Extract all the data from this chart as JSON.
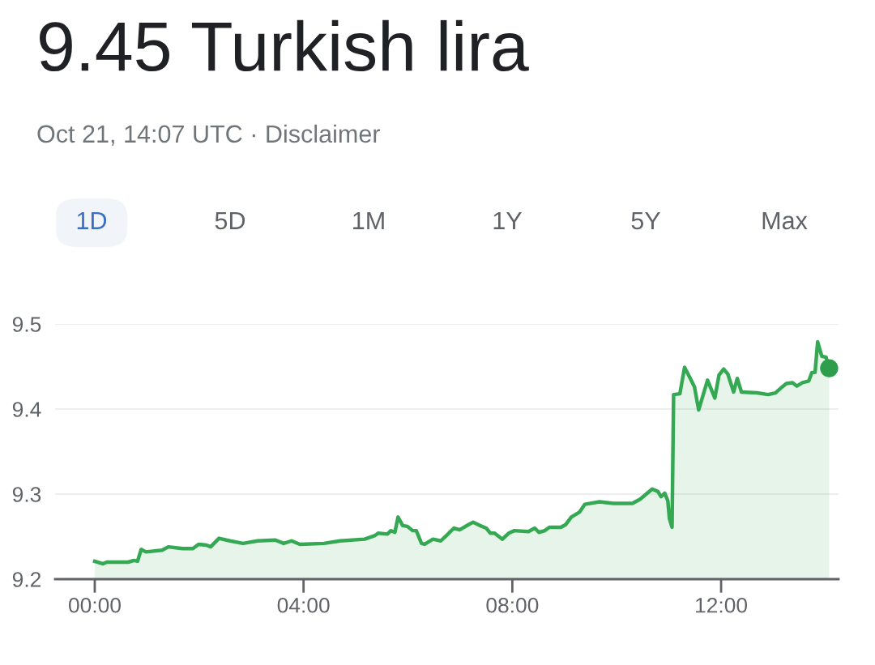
{
  "chart_data": {
    "type": "area",
    "title": "9.45 Turkish lira",
    "subtitle": "Oct 21, 14:07 UTC · Disclaimer",
    "annotations": [
      "1D",
      "5D",
      "1M",
      "1Y",
      "5Y",
      "Max"
    ],
    "xlim": [
      -0.76,
      14.25
    ],
    "ylim": [
      9.2,
      9.5
    ],
    "xticks": [
      {
        "value": 0,
        "label": "00:00"
      },
      {
        "value": 4,
        "label": "04:00"
      },
      {
        "value": 8,
        "label": "08:00"
      },
      {
        "value": 12,
        "label": "12:00"
      }
    ],
    "yticks": [
      9.2,
      9.3,
      9.4,
      9.5
    ],
    "grid": "y",
    "legend": false,
    "series": [
      {
        "color": "#34a853",
        "x": [
          0.0,
          0.16,
          0.23,
          0.64,
          0.75,
          0.82,
          0.89,
          0.98,
          1.29,
          1.41,
          1.68,
          1.88,
          1.99,
          2.14,
          2.22,
          2.38,
          2.59,
          2.84,
          3.12,
          3.46,
          3.62,
          3.77,
          3.93,
          4.39,
          4.7,
          5.17,
          5.36,
          5.43,
          5.61,
          5.67,
          5.75,
          5.81,
          5.9,
          5.99,
          6.09,
          6.16,
          6.26,
          6.32,
          6.48,
          6.63,
          6.75,
          6.88,
          6.99,
          7.16,
          7.25,
          7.38,
          7.5,
          7.58,
          7.66,
          7.81,
          7.93,
          8.04,
          8.31,
          8.43,
          8.51,
          8.62,
          8.71,
          8.93,
          9.02,
          9.13,
          9.29,
          9.39,
          9.67,
          9.8,
          9.94,
          10.3,
          10.45,
          10.68,
          10.79,
          10.85,
          10.92,
          10.98,
          11.01,
          11.06,
          11.09,
          11.21,
          11.3,
          11.41,
          11.49,
          11.57,
          11.74,
          11.88,
          11.96,
          12.05,
          12.13,
          12.24,
          12.31,
          12.39,
          12.69,
          12.9,
          13.04,
          13.17,
          13.25,
          13.37,
          13.45,
          13.56,
          13.68,
          13.74,
          13.8,
          13.85,
          13.93,
          14.01,
          14.07
        ],
        "values": [
          9.221,
          9.218,
          9.22,
          9.22,
          9.222,
          9.221,
          9.235,
          9.232,
          9.234,
          9.238,
          9.236,
          9.236,
          9.241,
          9.24,
          9.238,
          9.248,
          9.245,
          9.242,
          9.245,
          9.246,
          9.242,
          9.245,
          9.241,
          9.242,
          9.245,
          9.247,
          9.251,
          9.254,
          9.253,
          9.257,
          9.255,
          9.273,
          9.263,
          9.262,
          9.257,
          9.257,
          9.242,
          9.241,
          9.247,
          9.245,
          9.252,
          9.26,
          9.258,
          9.264,
          9.267,
          9.263,
          9.26,
          9.254,
          9.254,
          9.247,
          9.254,
          9.257,
          9.256,
          9.26,
          9.255,
          9.257,
          9.261,
          9.261,
          9.264,
          9.273,
          9.279,
          9.288,
          9.291,
          9.29,
          9.289,
          9.289,
          9.294,
          9.306,
          9.303,
          9.297,
          9.301,
          9.292,
          9.271,
          9.261,
          9.417,
          9.418,
          9.449,
          9.436,
          9.426,
          9.399,
          9.434,
          9.413,
          9.44,
          9.447,
          9.441,
          9.42,
          9.436,
          9.42,
          9.419,
          9.417,
          9.419,
          9.426,
          9.43,
          9.431,
          9.427,
          9.431,
          9.433,
          9.443,
          9.443,
          9.479,
          9.462,
          9.461,
          9.448
        ]
      },
      {
        "type": "scatter",
        "marker": "circle",
        "color": "#2e9e4c",
        "x": [
          14.07
        ],
        "values": [
          9.448
        ]
      }
    ]
  }
}
